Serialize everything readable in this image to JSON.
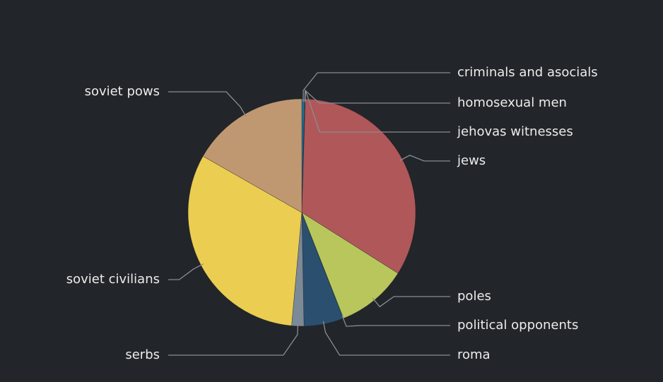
{
  "chart_data": {
    "type": "pie",
    "categories": [
      "criminals and asocials",
      "homosexual men",
      "jehovas witnesses",
      "jews",
      "poles",
      "political opponents",
      "roma",
      "serbs",
      "soviet civilians",
      "soviet pows"
    ],
    "values": [
      70000,
      15000,
      1900,
      6000000,
      1800000,
      15000,
      1000000,
      312000,
      5700000,
      3000000
    ],
    "colors": [
      "#1f6f94",
      "#3a8fb0",
      "#4aa3a0",
      "#b0575a",
      "#b8c65c",
      "#2ca5a0",
      "#2b4f6f",
      "#7c8a97",
      "#ebcd52",
      "#bf9872"
    ]
  }
}
